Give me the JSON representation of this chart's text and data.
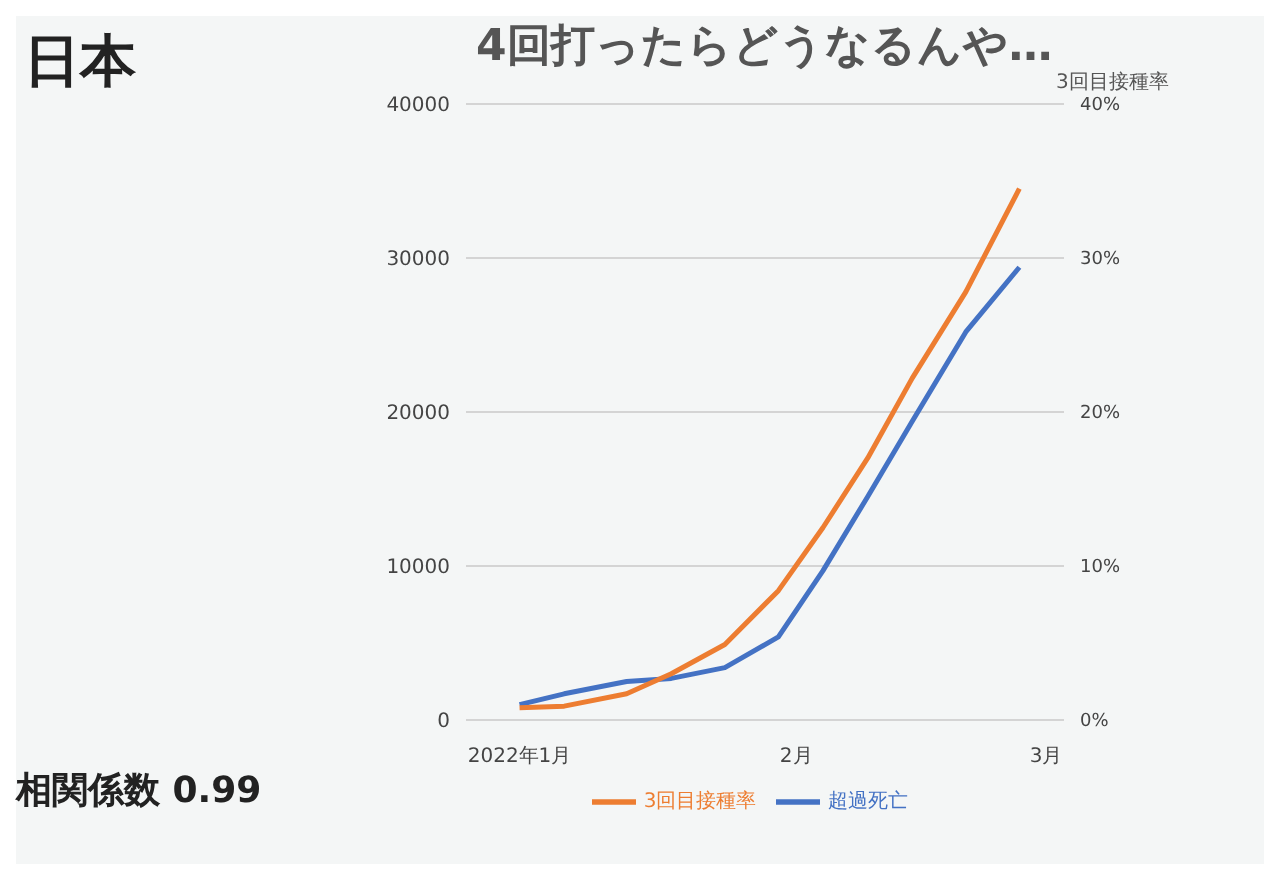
{
  "chart_data": {
    "type": "line",
    "title": "日本",
    "annotations": [
      "4回打ったらどうなるんや…",
      "相関係数 0.99"
    ],
    "y2label": "3回目接種率",
    "x": [
      "2022-01-01",
      "2022-01-06",
      "2022-01-13",
      "2022-01-18",
      "2022-01-24",
      "2022-01-30",
      "2022-02-04",
      "2022-02-09",
      "2022-02-14",
      "2022-02-20",
      "2022-02-26"
    ],
    "xlim": [
      "2021-12-26",
      "2022-03-03"
    ],
    "xticks": [
      {
        "value": "2022-01-01",
        "label": "2022年1月"
      },
      {
        "value": "2022-02-01",
        "label": "2月"
      },
      {
        "value": "2022-03-01",
        "label": "3月"
      }
    ],
    "ylim": [
      0,
      40000
    ],
    "yticks": [
      0,
      10000,
      20000,
      30000,
      40000
    ],
    "y2lim": [
      0,
      40
    ],
    "y2ticks": [
      {
        "value": 0,
        "label": "0%"
      },
      {
        "value": 10,
        "label": "10%"
      },
      {
        "value": 20,
        "label": "20%"
      },
      {
        "value": 30,
        "label": "30%"
      },
      {
        "value": 40,
        "label": "40%"
      }
    ],
    "series": [
      {
        "name": "超過死亡",
        "color": "#4472c4",
        "values": [
          1000,
          1700,
          2500,
          2700,
          3400,
          5400,
          9700,
          14500,
          19400,
          25200,
          29400
        ]
      },
      {
        "name": "3回目接種率",
        "color": "#ed7d31",
        "axis": "y2",
        "values": [
          0.8,
          0.9,
          1.7,
          3.0,
          4.9,
          8.4,
          12.5,
          17,
          22.2,
          27.8,
          34.5
        ]
      }
    ],
    "grid": "y",
    "legend": "bottom",
    "marker": "none",
    "line_style": "solid"
  }
}
